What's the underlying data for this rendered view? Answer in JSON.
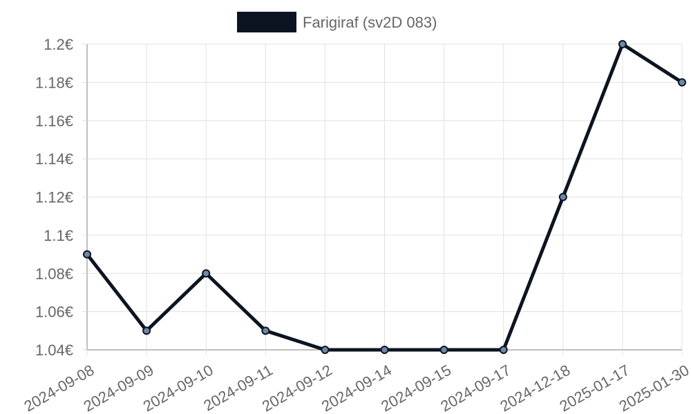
{
  "legend": {
    "label": "Farigiraf (sv2D 083)"
  },
  "colors": {
    "line": "#0d1421",
    "point_fill": "#6e86a8",
    "grid": "#e1e1e1",
    "axis": "#aaaaaa",
    "text": "#666666"
  },
  "chart_data": {
    "type": "line",
    "title": "",
    "xlabel": "",
    "ylabel": "",
    "legend_position": "top",
    "grid": true,
    "categories": [
      "2024-09-08",
      "2024-09-09",
      "2024-09-10",
      "2024-09-11",
      "2024-09-12",
      "2024-09-14",
      "2024-09-15",
      "2024-09-17",
      "2024-12-18",
      "2025-01-17",
      "2025-01-30"
    ],
    "series": [
      {
        "name": "Farigiraf (sv2D 083)",
        "values": [
          1.09,
          1.05,
          1.08,
          1.05,
          1.04,
          1.04,
          1.04,
          1.04,
          1.12,
          1.2,
          1.18
        ]
      }
    ],
    "ylim": [
      1.04,
      1.2
    ],
    "y_ticks": [
      "1.04€",
      "1.06€",
      "1.08€",
      "1.1€",
      "1.12€",
      "1.14€",
      "1.16€",
      "1.18€",
      "1.2€"
    ]
  }
}
